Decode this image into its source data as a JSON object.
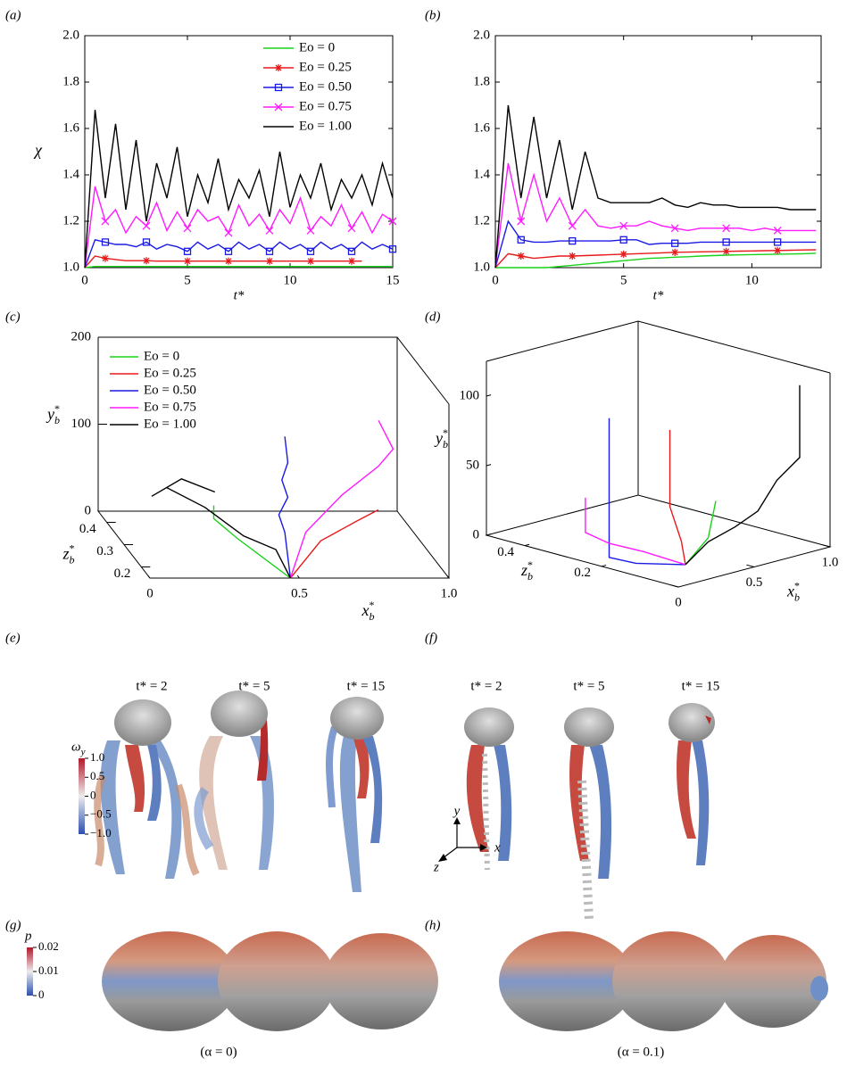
{
  "panels": {
    "a": "(a)",
    "b": "(b)",
    "c": "(c)",
    "d": "(d)",
    "e": "(e)",
    "f": "(f)",
    "g": "(g)",
    "h": "(h)"
  },
  "chart_data": [
    {
      "type": "line",
      "xlabel": "t*",
      "ylabel": "χ",
      "xlim": [
        0,
        15
      ],
      "ylim": [
        1,
        2
      ],
      "xticks": [
        0,
        5,
        10,
        15
      ],
      "yticks": [
        {
          "value": 1,
          "label": "1.0"
        },
        {
          "value": 1.2,
          "label": "1.2"
        },
        {
          "value": 1.4,
          "label": "1.4"
        },
        {
          "value": 1.6,
          "label": "1.6"
        },
        {
          "value": 1.8,
          "label": "1.8"
        },
        {
          "value": 2,
          "label": "2.0"
        }
      ],
      "legend": "upper right",
      "x": [
        0,
        0.5,
        1,
        1.5,
        2,
        2.5,
        3,
        3.5,
        4,
        4.5,
        5,
        5.5,
        6,
        6.5,
        7,
        7.5,
        8,
        8.5,
        9,
        9.5,
        10,
        10.5,
        11,
        11.5,
        12,
        12.5,
        13,
        13.5,
        14,
        14.5,
        15
      ],
      "series": [
        {
          "name": "Eo = 0",
          "color": "#19d219",
          "marker": "none",
          "values": [
            1.0,
            1.005,
            1.005,
            1.005,
            1.005,
            1.005,
            1.005,
            1.005,
            1.005,
            1.005,
            1.005,
            1.005,
            1.005,
            1.005,
            1.005,
            1.005,
            1.005,
            1.005,
            1.005,
            1.005,
            1.005,
            1.005,
            1.005,
            1.005,
            1.005,
            1.005,
            1.005,
            1.005,
            1.005,
            1.005,
            1.005
          ]
        },
        {
          "name": "Eo = 0.25",
          "color": "#e8191b",
          "marker": "star",
          "values": [
            1.0,
            1.05,
            1.04,
            1.035,
            1.03,
            1.03,
            1.03,
            1.028,
            1.028,
            1.028,
            1.028,
            1.028,
            1.028,
            1.028,
            1.028,
            1.028,
            1.028,
            1.028,
            1.028,
            1.028,
            1.028,
            1.028,
            1.028,
            1.028,
            1.028,
            1.028,
            1.028,
            1.028,
            null,
            null,
            null
          ]
        },
        {
          "name": "Eo = 0.50",
          "color": "#1a1ae6",
          "marker": "square",
          "values": [
            1.0,
            1.12,
            1.11,
            1.1,
            1.1,
            1.09,
            1.11,
            1.08,
            1.1,
            1.09,
            1.07,
            1.11,
            1.08,
            1.1,
            1.07,
            1.11,
            1.08,
            1.1,
            1.07,
            1.11,
            1.08,
            1.1,
            1.07,
            1.11,
            1.08,
            1.1,
            1.07,
            1.11,
            1.08,
            1.1,
            1.08
          ]
        },
        {
          "name": "Eo = 0.75",
          "color": "#ff1aff",
          "marker": "cross",
          "values": [
            1.0,
            1.35,
            1.2,
            1.25,
            1.15,
            1.22,
            1.18,
            1.28,
            1.16,
            1.24,
            1.17,
            1.25,
            1.2,
            1.22,
            1.15,
            1.27,
            1.18,
            1.23,
            1.16,
            1.25,
            1.19,
            1.3,
            1.16,
            1.22,
            1.18,
            1.27,
            1.17,
            1.24,
            1.15,
            1.23,
            1.2
          ]
        },
        {
          "name": "Eo = 1.00",
          "color": "#000000",
          "marker": "none",
          "values": [
            1.0,
            1.68,
            1.3,
            1.62,
            1.25,
            1.55,
            1.2,
            1.45,
            1.3,
            1.52,
            1.22,
            1.4,
            1.28,
            1.47,
            1.25,
            1.38,
            1.3,
            1.42,
            1.22,
            1.5,
            1.26,
            1.4,
            1.3,
            1.45,
            1.25,
            1.38,
            1.3,
            1.4,
            1.27,
            1.45,
            1.3
          ]
        }
      ]
    },
    {
      "type": "line",
      "xlabel": "t*",
      "xlim": [
        0,
        12.7
      ],
      "ylim": [
        1,
        2
      ],
      "xticks": [
        0,
        5,
        10
      ],
      "yticks": [
        {
          "value": 1,
          "label": "1.0"
        },
        {
          "value": 1.2,
          "label": "1.2"
        },
        {
          "value": 1.4,
          "label": "1.4"
        },
        {
          "value": 1.6,
          "label": "1.6"
        },
        {
          "value": 1.8,
          "label": "1.8"
        },
        {
          "value": 2,
          "label": "2.0"
        }
      ],
      "x": [
        0,
        0.5,
        1,
        1.5,
        2,
        2.5,
        3,
        3.5,
        4,
        4.5,
        5,
        5.5,
        6,
        6.5,
        7,
        7.5,
        8,
        8.5,
        9,
        9.5,
        10,
        10.5,
        11,
        11.5,
        12,
        12.5
      ],
      "series": [
        {
          "color": "#19d219",
          "marker": "none",
          "values": [
            1.0,
            1.0,
            1.0,
            1.0,
            1.0,
            1.005,
            1.01,
            1.015,
            1.02,
            1.025,
            1.03,
            1.035,
            1.04,
            1.042,
            1.045,
            1.047,
            1.05,
            1.052,
            1.054,
            1.055,
            1.056,
            1.057,
            1.058,
            1.059,
            1.06,
            1.062
          ]
        },
        {
          "color": "#e8191b",
          "marker": "star",
          "values": [
            1.0,
            1.06,
            1.05,
            1.04,
            1.045,
            1.05,
            1.05,
            1.052,
            1.054,
            1.056,
            1.058,
            1.06,
            1.062,
            1.064,
            1.066,
            1.067,
            1.068,
            1.069,
            1.07,
            1.071,
            1.072,
            1.073,
            1.074,
            1.075,
            1.076,
            1.077
          ]
        },
        {
          "color": "#1a1ae6",
          "marker": "square",
          "values": [
            1.0,
            1.2,
            1.12,
            1.11,
            1.11,
            1.115,
            1.115,
            1.115,
            1.115,
            1.115,
            1.12,
            1.12,
            1.1,
            1.105,
            1.105,
            1.105,
            1.11,
            1.11,
            1.11,
            1.11,
            1.11,
            1.11,
            1.11,
            1.11,
            1.11,
            1.11
          ]
        },
        {
          "color": "#ff1aff",
          "marker": "cross",
          "values": [
            1.0,
            1.45,
            1.2,
            1.4,
            1.2,
            1.3,
            1.18,
            1.25,
            1.18,
            1.17,
            1.18,
            1.18,
            1.2,
            1.18,
            1.17,
            1.16,
            1.17,
            1.17,
            1.17,
            1.17,
            1.16,
            1.17,
            1.16,
            1.16,
            1.16,
            1.16
          ]
        },
        {
          "color": "#000000",
          "marker": "none",
          "values": [
            1.0,
            1.7,
            1.3,
            1.65,
            1.3,
            1.55,
            1.25,
            1.5,
            1.3,
            1.28,
            1.28,
            1.28,
            1.28,
            1.3,
            1.27,
            1.26,
            1.28,
            1.27,
            1.27,
            1.26,
            1.26,
            1.26,
            1.26,
            1.25,
            1.25,
            1.25
          ]
        }
      ]
    },
    {
      "type": "line3d",
      "legend": "upper left",
      "xlabel": {
        "base": "x",
        "sup": "*",
        "sub": "b"
      },
      "ylabel": {
        "base": "y",
        "sup": "*",
        "sub": "b"
      },
      "zlabel": {
        "base": "z",
        "sup": "*",
        "sub": "b"
      },
      "xlim": [
        0,
        1
      ],
      "ylim": [
        0,
        200
      ],
      "zlim": [
        0.15,
        0.45
      ],
      "xticks": [
        0,
        0.5,
        {
          "value": 1,
          "label": "1.0"
        }
      ],
      "yticks": [
        0,
        100,
        200
      ],
      "zticks": [
        0.2,
        0.3,
        0.4
      ],
      "series": [
        {
          "name": "Eo = 0",
          "color": "#19d219",
          "x": [
            0.47,
            0.35,
            0.3,
            0.3
          ],
          "y": [
            0,
            20,
            30,
            45
          ],
          "z": [
            0.15,
            0.25,
            0.3,
            0.3
          ]
        },
        {
          "name": "Eo = 0.25",
          "color": "#e8191b",
          "x": [
            0.47,
            0.6,
            0.75,
            0.85
          ],
          "y": [
            0,
            30,
            40,
            40
          ],
          "z": [
            0.15,
            0.2,
            0.25,
            0.3
          ]
        },
        {
          "name": "Eo = 0.50",
          "color": "#1a1ae6",
          "x": [
            0.47,
            0.48,
            0.46,
            0.49,
            0.47,
            0.49,
            0.48
          ],
          "y": [
            0,
            40,
            60,
            80,
            100,
            120,
            150
          ],
          "z": [
            0.15,
            0.2,
            0.2,
            0.2,
            0.2,
            0.2,
            0.2
          ]
        },
        {
          "name": "Eo = 0.75",
          "color": "#ff1aff",
          "x": [
            0.47,
            0.55,
            0.7,
            0.85,
            0.9,
            0.88
          ],
          "y": [
            0,
            40,
            70,
            90,
            110,
            130
          ],
          "z": [
            0.15,
            0.2,
            0.25,
            0.3,
            0.3,
            0.35
          ]
        },
        {
          "name": "Eo = 1.00",
          "color": "#000000",
          "x": [
            0.47,
            0.45,
            0.4,
            0.3,
            0.2,
            0.15,
            0.25,
            0.35
          ],
          "y": [
            0,
            20,
            10,
            30,
            40,
            30,
            50,
            40
          ],
          "z": [
            0.15,
            0.2,
            0.3,
            0.35,
            0.4,
            0.4,
            0.4,
            0.38
          ]
        }
      ]
    },
    {
      "type": "line3d",
      "xlabel": {
        "base": "x",
        "sup": "*",
        "sub": "b"
      },
      "ylabel": {
        "base": "y",
        "sup": "*",
        "sub": "b"
      },
      "zlabel": {
        "base": "z",
        "sup": "*",
        "sub": "b"
      },
      "xlim": [
        0,
        1
      ],
      "ylim": [
        0,
        125
      ],
      "zlim": [
        0,
        0.5
      ],
      "xticks": [
        0,
        0.5,
        {
          "value": 1,
          "label": "1.0"
        }
      ],
      "yticks": [
        0,
        50,
        100
      ],
      "zticks": [
        0.2,
        0.4
      ],
      "series": [
        {
          "color": "#19d219",
          "x": [
            0.3,
            0.45,
            0.5
          ],
          "y": [
            0,
            15,
            40
          ],
          "z": [
            0.1,
            0.1,
            0.1
          ]
        },
        {
          "color": "#e8191b",
          "x": [
            0.3,
            0.4,
            0.45,
            0.45
          ],
          "y": [
            0,
            10,
            30,
            85
          ],
          "z": [
            0.1,
            0.15,
            0.2,
            0.2
          ]
        },
        {
          "color": "#1a1ae6",
          "x": [
            0.3,
            0.1,
            0.05,
            0.05,
            0.05
          ],
          "y": [
            0,
            3,
            5,
            50,
            105
          ],
          "z": [
            0.1,
            0.15,
            0.2,
            0.2,
            0.2
          ]
        },
        {
          "color": "#ff1aff",
          "x": [
            0.3,
            0.15,
            0.05,
            0.02,
            0.02
          ],
          "y": [
            0,
            10,
            15,
            20,
            45
          ],
          "z": [
            0.1,
            0.15,
            0.2,
            0.25,
            0.25
          ]
        },
        {
          "color": "#000000",
          "x": [
            0.3,
            0.4,
            0.5,
            0.6,
            0.7,
            0.8,
            0.8
          ],
          "y": [
            0,
            15,
            25,
            35,
            55,
            70,
            122
          ],
          "z": [
            0.1,
            0.08,
            0.05,
            0.03,
            0.02,
            0.0,
            0.0
          ]
        }
      ]
    }
  ],
  "vorticity": {
    "times": [
      "t* = 2",
      "t* = 5",
      "t* = 15"
    ],
    "times_f": [
      "t* = 2",
      "t* = 5",
      "t* = 15"
    ],
    "colorbar": {
      "label": "ω",
      "sub": "y",
      "lim": [
        -1,
        1
      ],
      "ticks": [
        {
          "value": 1,
          "label": "1.0"
        },
        0.5,
        0,
        {
          "value": -0.5,
          "label": "−0.5"
        },
        {
          "value": -1,
          "label": "−1.0"
        }
      ]
    }
  },
  "pressure": {
    "colorbar": {
      "label": "p",
      "lim": [
        0,
        0.02
      ],
      "ticks": [
        0.02,
        0.01,
        0
      ]
    }
  },
  "triad": {
    "x": "x",
    "y": "y",
    "z": "z"
  },
  "captions": [
    "(α = 0)",
    "(α = 0.1)"
  ]
}
